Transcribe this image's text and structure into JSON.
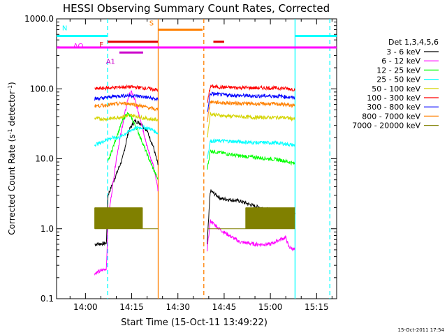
{
  "chart_data": {
    "type": "line",
    "title": "HESSI Observing Summary Count Rates, Corrected",
    "xlabel": "Start Time (15-Oct-11 13:49:22)",
    "ylabel_main": "Corrected Count Rate (s",
    "ylabel_sup1": "-1",
    "ylabel_mid": " detector",
    "ylabel_sup2": "-1",
    "ylabel_end": ")",
    "footer_timestamp": "15-Oct-2011 17:54",
    "y_scale": "log",
    "ylim": [
      0.1,
      1000
    ],
    "xlim_minutes": [
      -9.37,
      81.5
    ],
    "yticks": [
      {
        "value": 1000,
        "label": "1000.0"
      },
      {
        "value": 100,
        "label": "100.0"
      },
      {
        "value": 10,
        "label": "10.0"
      },
      {
        "value": 1,
        "label": "1.0"
      },
      {
        "value": 0.1,
        "label": "0.1"
      }
    ],
    "xticks": [
      {
        "minutes": 0,
        "label": "14:00"
      },
      {
        "minutes": 15,
        "label": "14:15"
      },
      {
        "minutes": 30,
        "label": "14:30"
      },
      {
        "minutes": 45,
        "label": "14:45"
      },
      {
        "minutes": 60,
        "label": "15:00"
      },
      {
        "minutes": 75,
        "label": "15:15"
      }
    ],
    "legend": {
      "title": "Det 1,3,4,5,6",
      "position": "right",
      "entries": [
        {
          "label": "3 - 6 keV",
          "color": "#000000"
        },
        {
          "label": "6 - 12 keV",
          "color": "#ff00ff"
        },
        {
          "label": "12 - 25 keV",
          "color": "#00ff00"
        },
        {
          "label": "25 - 50 keV",
          "color": "#00ffff"
        },
        {
          "label": "50 - 100 keV",
          "color": "#d4d400"
        },
        {
          "label": "100 - 300 keV",
          "color": "#ff0000"
        },
        {
          "label": "300 - 800 keV",
          "color": "#0000ff"
        },
        {
          "label": "800 - 7000 keV",
          "color": "#ff8000"
        },
        {
          "label": "7000 - 20000 keV",
          "color": "#808000"
        }
      ]
    },
    "status_bars": [
      {
        "label": "N",
        "color": "#00ffff",
        "y": 570,
        "segments": [
          [
            -9.4,
            7
          ],
          [
            68,
            81.5
          ]
        ]
      },
      {
        "label": "F",
        "color": "#e00000",
        "y": 470,
        "segments": [
          [
            7.2,
            23.5
          ],
          [
            41.5,
            45
          ]
        ]
      },
      {
        "label": "AO",
        "color": "#ff00ff",
        "y": 390,
        "segments": [
          [
            -9.4,
            81.5
          ]
        ]
      },
      {
        "label": "A1",
        "color": "#cc00cc",
        "y": 330,
        "segments": [
          [
            11,
            18.7
          ]
        ]
      },
      {
        "label": "S",
        "color": "#ff8000",
        "y": 700,
        "segments": [
          [
            23.5,
            38
          ]
        ]
      }
    ],
    "vertical_markers": [
      {
        "minutes": 7.2,
        "color": "#00ffff",
        "style": "dashed"
      },
      {
        "minutes": 23.6,
        "color": "#ff8000",
        "style": "solid"
      },
      {
        "minutes": 38.4,
        "color": "#ff8000",
        "style": "dashed"
      },
      {
        "minutes": 68,
        "color": "#00ffff",
        "style": "solid"
      },
      {
        "minutes": 79.3,
        "color": "#00ffff",
        "style": "dashed"
      }
    ],
    "segments_time": [
      [
        3,
        23.6
      ],
      [
        39.5,
        68
      ]
    ],
    "series": [
      {
        "name": "3 - 6 keV",
        "color": "#000000",
        "points": [
          [
            3,
            0.6
          ],
          [
            6.8,
            0.62
          ],
          [
            7.3,
            3
          ],
          [
            10,
            6
          ],
          [
            12,
            10
          ],
          [
            14,
            25
          ],
          [
            16,
            35
          ],
          [
            18,
            32
          ],
          [
            20,
            25
          ],
          [
            22,
            15
          ],
          [
            23.6,
            8
          ],
          [
            39.5,
            0.6
          ],
          [
            40.5,
            3.5
          ],
          [
            44,
            2.7
          ],
          [
            50,
            2.5
          ],
          [
            55,
            2.1
          ],
          [
            60,
            1.85
          ],
          [
            63,
            1.8
          ],
          [
            66,
            1.7
          ],
          [
            68,
            1.65
          ]
        ]
      },
      {
        "name": "6 - 12 keV",
        "color": "#ff00ff",
        "points": [
          [
            3,
            0.23
          ],
          [
            6.8,
            0.27
          ],
          [
            7.3,
            1.3
          ],
          [
            10,
            10
          ],
          [
            12,
            30
          ],
          [
            14,
            80
          ],
          [
            15,
            90
          ],
          [
            16,
            70
          ],
          [
            18,
            35
          ],
          [
            20,
            15
          ],
          [
            22,
            8
          ],
          [
            23.6,
            3.5
          ],
          [
            39.5,
            0.5
          ],
          [
            40.5,
            1.3
          ],
          [
            44,
            0.95
          ],
          [
            50,
            0.65
          ],
          [
            55,
            0.6
          ],
          [
            60,
            0.6
          ],
          [
            63,
            0.7
          ],
          [
            65,
            0.75
          ],
          [
            66,
            0.55
          ],
          [
            68,
            0.5
          ]
        ]
      },
      {
        "name": "12 - 25 keV",
        "color": "#00ff00",
        "points": [
          [
            7.3,
            9
          ],
          [
            10,
            20
          ],
          [
            12,
            35
          ],
          [
            13.5,
            45
          ],
          [
            15,
            38
          ],
          [
            17,
            25
          ],
          [
            19,
            15
          ],
          [
            21,
            9
          ],
          [
            23.6,
            5
          ],
          [
            39.5,
            7
          ],
          [
            40.5,
            13
          ],
          [
            45,
            12
          ],
          [
            50,
            11
          ],
          [
            55,
            10.5
          ],
          [
            60,
            10
          ],
          [
            64,
            9.5
          ],
          [
            68,
            8.5
          ]
        ]
      },
      {
        "name": "25 - 50 keV",
        "color": "#00ffff",
        "points": [
          [
            3,
            16
          ],
          [
            5,
            17
          ],
          [
            7,
            19
          ],
          [
            9,
            20
          ],
          [
            11,
            20
          ],
          [
            13,
            23
          ],
          [
            15,
            26
          ],
          [
            17,
            28
          ],
          [
            19,
            28
          ],
          [
            21,
            27
          ],
          [
            23.6,
            23
          ],
          [
            39.5,
            10
          ],
          [
            40.5,
            18
          ],
          [
            45,
            18
          ],
          [
            50,
            17.5
          ],
          [
            55,
            17
          ],
          [
            60,
            17
          ],
          [
            64,
            16.5
          ],
          [
            68,
            15.5
          ]
        ]
      },
      {
        "name": "50 - 100 keV",
        "color": "#d4d400",
        "points": [
          [
            3,
            38
          ],
          [
            6,
            37
          ],
          [
            9,
            38
          ],
          [
            12,
            40
          ],
          [
            15,
            42
          ],
          [
            18,
            39
          ],
          [
            21,
            37
          ],
          [
            23.6,
            36
          ],
          [
            39.5,
            20
          ],
          [
            40.5,
            44
          ],
          [
            45,
            41
          ],
          [
            50,
            40
          ],
          [
            55,
            39
          ],
          [
            60,
            39
          ],
          [
            64,
            39
          ],
          [
            68,
            37
          ]
        ]
      },
      {
        "name": "100 - 300 keV",
        "color": "#ff0000",
        "points": [
          [
            3,
            100
          ],
          [
            6,
            102
          ],
          [
            9,
            104
          ],
          [
            12,
            106
          ],
          [
            15,
            106
          ],
          [
            18,
            104
          ],
          [
            21,
            100
          ],
          [
            23.6,
            96
          ],
          [
            39.5,
            60
          ],
          [
            40.5,
            108
          ],
          [
            45,
            105
          ],
          [
            50,
            104
          ],
          [
            55,
            103
          ],
          [
            60,
            103
          ],
          [
            64,
            102
          ],
          [
            68,
            98
          ]
        ]
      },
      {
        "name": "300 - 800 keV",
        "color": "#0000ff",
        "points": [
          [
            3,
            72
          ],
          [
            6,
            74
          ],
          [
            9,
            78
          ],
          [
            12,
            80
          ],
          [
            15,
            80
          ],
          [
            18,
            78
          ],
          [
            21,
            74
          ],
          [
            23.6,
            70
          ],
          [
            39.5,
            45
          ],
          [
            40.5,
            85
          ],
          [
            45,
            82
          ],
          [
            50,
            80
          ],
          [
            55,
            79
          ],
          [
            60,
            79
          ],
          [
            64,
            78
          ],
          [
            68,
            74
          ]
        ]
      },
      {
        "name": "800 - 7000 keV",
        "color": "#ff8000",
        "points": [
          [
            3,
            57
          ],
          [
            6,
            58
          ],
          [
            9,
            60
          ],
          [
            12,
            62
          ],
          [
            15,
            61
          ],
          [
            18,
            57
          ],
          [
            21,
            53
          ],
          [
            23.6,
            50
          ],
          [
            39.5,
            35
          ],
          [
            40.5,
            65
          ],
          [
            45,
            63
          ],
          [
            50,
            62
          ],
          [
            55,
            61
          ],
          [
            60,
            61
          ],
          [
            64,
            60
          ],
          [
            68,
            57
          ]
        ]
      }
    ],
    "series_olive": {
      "name": "7000 - 20000 keV",
      "color": "#808000",
      "low": 1,
      "high": 2,
      "low_ranges": [
        [
          3,
          23.6
        ],
        [
          39.5,
          68
        ]
      ],
      "high_ranges": [
        [
          3,
          18.5
        ],
        [
          52,
          68
        ]
      ]
    }
  }
}
